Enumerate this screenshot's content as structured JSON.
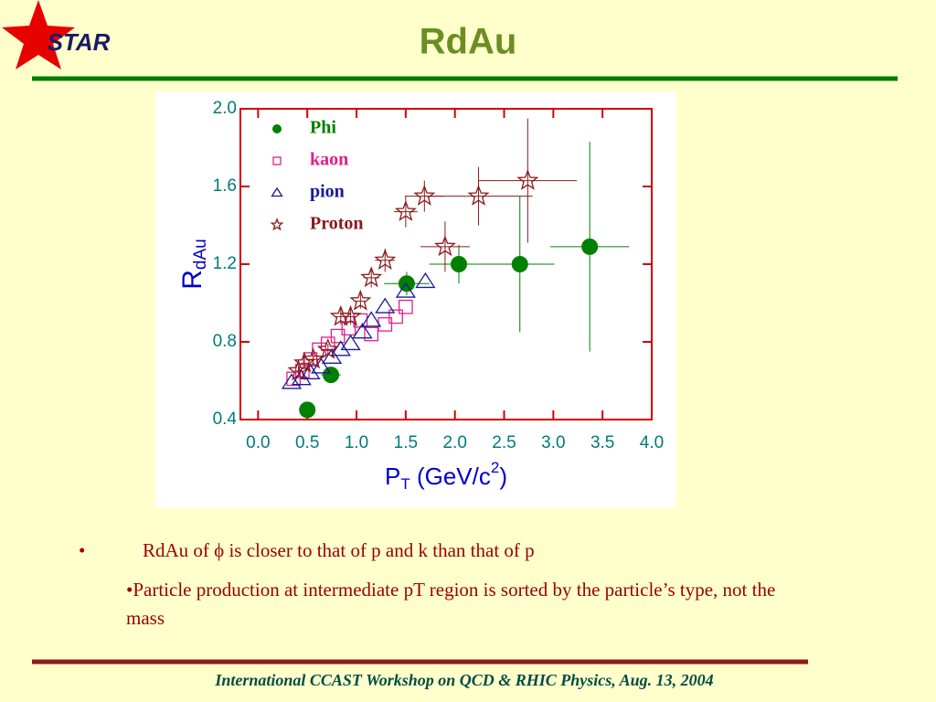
{
  "slide": {
    "logo": "STAR",
    "title": "RdAu",
    "bullets": [
      {
        "marker": "•",
        "text": "RdAu of ϕ is closer to that of p and k than that of p"
      },
      {
        "text": "•Particle production at intermediate pT region is sorted by the particle’s type, not the mass"
      }
    ],
    "footer": "International CCAST Workshop on QCD & RHIC Physics, Aug. 13, 2004"
  },
  "chart_data": {
    "type": "scatter",
    "ylabel": "R",
    "ylabel_sub": "dAu",
    "xlabel": [
      "P",
      "T",
      " (GeV/c",
      "2",
      ")"
    ],
    "xlim": [
      -0.18,
      4.0
    ],
    "xticks": [
      {
        "value": 0,
        "label": "0.0"
      },
      0.5,
      {
        "value": 1,
        "label": "1.0"
      },
      1.5,
      {
        "value": 2,
        "label": "2.0"
      },
      2.5,
      {
        "value": 3,
        "label": "3.0"
      },
      3.5,
      {
        "value": 4,
        "label": "4.0"
      }
    ],
    "ylim": [
      0.4,
      2.0
    ],
    "yticks": [
      0.4,
      0.8,
      1.2,
      1.6,
      {
        "value": 2,
        "label": "2.0"
      }
    ],
    "legend": "upper left",
    "series": [
      {
        "name": "Phi",
        "color": "#008000",
        "marker": "circle",
        "x": [
          0.5,
          0.74,
          1.51,
          2.04,
          2.66,
          3.37
        ],
        "values": [
          0.45,
          0.63,
          1.1,
          1.2,
          1.2,
          1.29
        ],
        "xerr": [
          0.05,
          0.1,
          0.23,
          0.3,
          0.35,
          0.4
        ],
        "yerr": [
          0.02,
          0.03,
          0.06,
          0.1,
          0.35,
          0.54
        ]
      },
      {
        "name": "kaon",
        "color": "#e0208a",
        "marker": "square",
        "x": [
          0.36,
          0.45,
          0.53,
          0.62,
          0.71,
          0.81,
          0.92,
          1.04,
          1.15,
          1.29,
          1.4,
          1.5
        ],
        "values": [
          0.61,
          0.65,
          0.71,
          0.76,
          0.79,
          0.83,
          0.87,
          0.91,
          0.84,
          0.89,
          0.93,
          0.98
        ]
      },
      {
        "name": "pion",
        "color": "#1a1a99",
        "marker": "triangle",
        "x": [
          0.34,
          0.44,
          0.53,
          0.64,
          0.75,
          0.84,
          0.94,
          1.06,
          1.15,
          1.29,
          1.5,
          1.7
        ],
        "values": [
          0.59,
          0.61,
          0.64,
          0.67,
          0.72,
          0.76,
          0.79,
          0.85,
          0.91,
          0.98,
          1.06,
          1.11
        ]
      },
      {
        "name": "Proton",
        "color": "#8b1a1a",
        "marker": "star",
        "x": [
          0.41,
          0.47,
          0.56,
          0.71,
          0.84,
          0.94,
          1.04,
          1.15,
          1.29,
          1.5,
          1.69,
          1.9,
          2.24,
          2.74
        ],
        "values": [
          0.65,
          0.69,
          0.71,
          0.76,
          0.93,
          0.93,
          1.01,
          1.13,
          1.22,
          1.47,
          1.55,
          1.29,
          1.55,
          1.63
        ],
        "xerr": [
          0.04,
          0.04,
          0.05,
          0.05,
          0.05,
          0.05,
          0.05,
          0.08,
          0.1,
          0.12,
          0.2,
          0.25,
          0.55,
          0.5
        ],
        "yerr": [
          0.03,
          0.03,
          0.03,
          0.03,
          0.04,
          0.04,
          0.04,
          0.05,
          0.06,
          0.08,
          0.08,
          0.13,
          0.15,
          0.32
        ]
      }
    ]
  }
}
